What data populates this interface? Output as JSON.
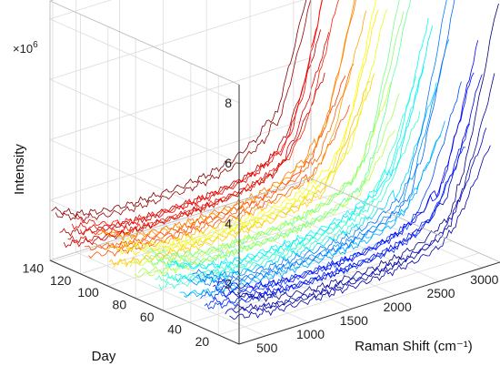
{
  "chart_data": {
    "type": "line",
    "view": "3d-waterfall",
    "axes": {
      "x": {
        "label": "Raman Shift (cm⁻¹)",
        "range": [
          200,
          3200
        ],
        "ticks": [
          500,
          1000,
          1500,
          2000,
          2500,
          3000
        ]
      },
      "y": {
        "label": "Day",
        "range": [
          5,
          142
        ],
        "ticks": [
          20,
          40,
          60,
          80,
          100,
          120,
          140
        ]
      },
      "z": {
        "label": "Intensity",
        "range": [
          0,
          8.6
        ],
        "ticks": [
          2,
          4,
          6,
          8
        ],
        "multiplier": "×10",
        "multiplier_exponent": "6"
      }
    },
    "grid": true,
    "colormap": "jet (low day = blue, high day = red)",
    "series_days": {
      "start": 6,
      "end": 141,
      "step": 3
    },
    "baseline_profile": {
      "x": [
        200,
        500,
        800,
        1100,
        1400,
        1700,
        2000,
        2300,
        2600,
        2800,
        3000,
        3200
      ],
      "y": [
        1.45,
        1.1,
        0.95,
        0.9,
        0.92,
        0.95,
        1.05,
        1.25,
        1.7,
        2.6,
        4.6,
        6.8
      ]
    }
  }
}
